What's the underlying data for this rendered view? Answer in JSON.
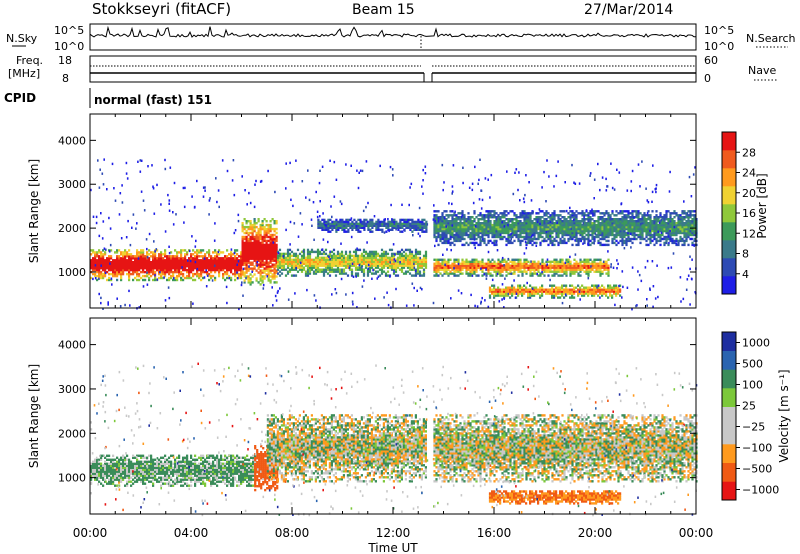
{
  "header": {
    "station": "Stokkseyri (fitACF)",
    "beam": "Beam 15",
    "date": "27/Mar/2014"
  },
  "sky_panel": {
    "left_label": "N.Sky",
    "left_ticks": [
      "10^5",
      "10^0"
    ],
    "right_ticks": [
      "10^5",
      "10^0"
    ],
    "right_label": "N.Search"
  },
  "freq_panel": {
    "left_label_1": "Freq.",
    "left_label_2": "[MHz]",
    "left_ticks": [
      "18",
      "8"
    ],
    "right_ticks": [
      "60",
      "0"
    ],
    "right_label": "Nave"
  },
  "cpid": {
    "label": "CPID",
    "value": "normal (fast) 151"
  },
  "chart_data": [
    {
      "type": "heatmap",
      "title": "",
      "xlabel": "Time UT",
      "ylabel": "Slant Range [km]",
      "xlim": [
        "00:00",
        "24:00"
      ],
      "ylim": [
        180,
        4600
      ],
      "x_ticks": [
        "00:00",
        "04:00",
        "08:00",
        "12:00",
        "16:00",
        "20:00",
        "00:00"
      ],
      "y_ticks": [
        "1000",
        "2000",
        "3000",
        "4000"
      ],
      "data_gap_ut_hours": [
        13.35,
        13.55
      ],
      "colorbar": {
        "label": "Power [dB]",
        "ticks": [
          "4",
          "8",
          "12",
          "16",
          "20",
          "24",
          "28"
        ],
        "range": [
          0,
          32
        ],
        "colors": [
          "#1e1ee6",
          "#2d4ab4",
          "#3a7a8a",
          "#3c9a5a",
          "#8fc83a",
          "#f0d232",
          "#ff9a1e",
          "#f05a1e",
          "#e61414"
        ]
      },
      "echo_bands": [
        {
          "start_h": 0.0,
          "end_h": 6.0,
          "range_low_km": 800,
          "range_high_km": 1500,
          "level_db": 26
        },
        {
          "start_h": 6.0,
          "end_h": 7.4,
          "range_low_km": 700,
          "range_high_km": 2200,
          "level_db": 24
        },
        {
          "start_h": 7.4,
          "end_h": 13.3,
          "range_low_km": 900,
          "range_high_km": 1500,
          "level_db": 14
        },
        {
          "start_h": 9.0,
          "end_h": 13.3,
          "range_low_km": 1900,
          "range_high_km": 2200,
          "level_db": 6
        },
        {
          "start_h": 13.6,
          "end_h": 20.5,
          "range_low_km": 900,
          "range_high_km": 1300,
          "level_db": 18
        },
        {
          "start_h": 13.6,
          "end_h": 24.0,
          "range_low_km": 1600,
          "range_high_km": 2400,
          "level_db": 8
        },
        {
          "start_h": 15.8,
          "end_h": 21.0,
          "range_low_km": 400,
          "range_high_km": 700,
          "level_db": 18
        }
      ]
    },
    {
      "type": "heatmap",
      "title": "",
      "xlabel": "Time UT",
      "ylabel": "Slant Range [km]",
      "xlim": [
        "00:00",
        "24:00"
      ],
      "ylim": [
        180,
        4600
      ],
      "x_ticks": [
        "00:00",
        "04:00",
        "08:00",
        "12:00",
        "16:00",
        "20:00",
        "00:00"
      ],
      "y_ticks": [
        "1000",
        "2000",
        "3000",
        "4000"
      ],
      "data_gap_ut_hours": [
        13.35,
        13.55
      ],
      "colorbar": {
        "label": "Velocity [m s⁻¹]",
        "ticks": [
          "1000",
          "500",
          "100",
          "25",
          "−25",
          "−100",
          "−500",
          "−1000"
        ],
        "colors": [
          "#1e2ea0",
          "#2a64b0",
          "#3a8c5a",
          "#7cc83a",
          "#c8c8c8",
          "#c8c8c8",
          "#ff9a1e",
          "#f05a14",
          "#e61414"
        ]
      },
      "echo_bands": [
        {
          "start_h": 0.0,
          "end_h": 6.5,
          "range_low_km": 800,
          "range_high_km": 1500,
          "velocity_ms": 100
        },
        {
          "start_h": 6.5,
          "end_h": 7.4,
          "range_low_km": 700,
          "range_high_km": 1700,
          "velocity_ms": -500
        },
        {
          "start_h": 7.0,
          "end_h": 13.3,
          "range_low_km": 900,
          "range_high_km": 2400,
          "velocity_ms": 0
        },
        {
          "start_h": 13.6,
          "end_h": 24.0,
          "range_low_km": 900,
          "range_high_km": 2400,
          "velocity_ms": 0
        },
        {
          "start_h": 15.8,
          "end_h": 21.0,
          "range_low_km": 400,
          "range_high_km": 700,
          "velocity_ms": -300
        }
      ]
    }
  ]
}
